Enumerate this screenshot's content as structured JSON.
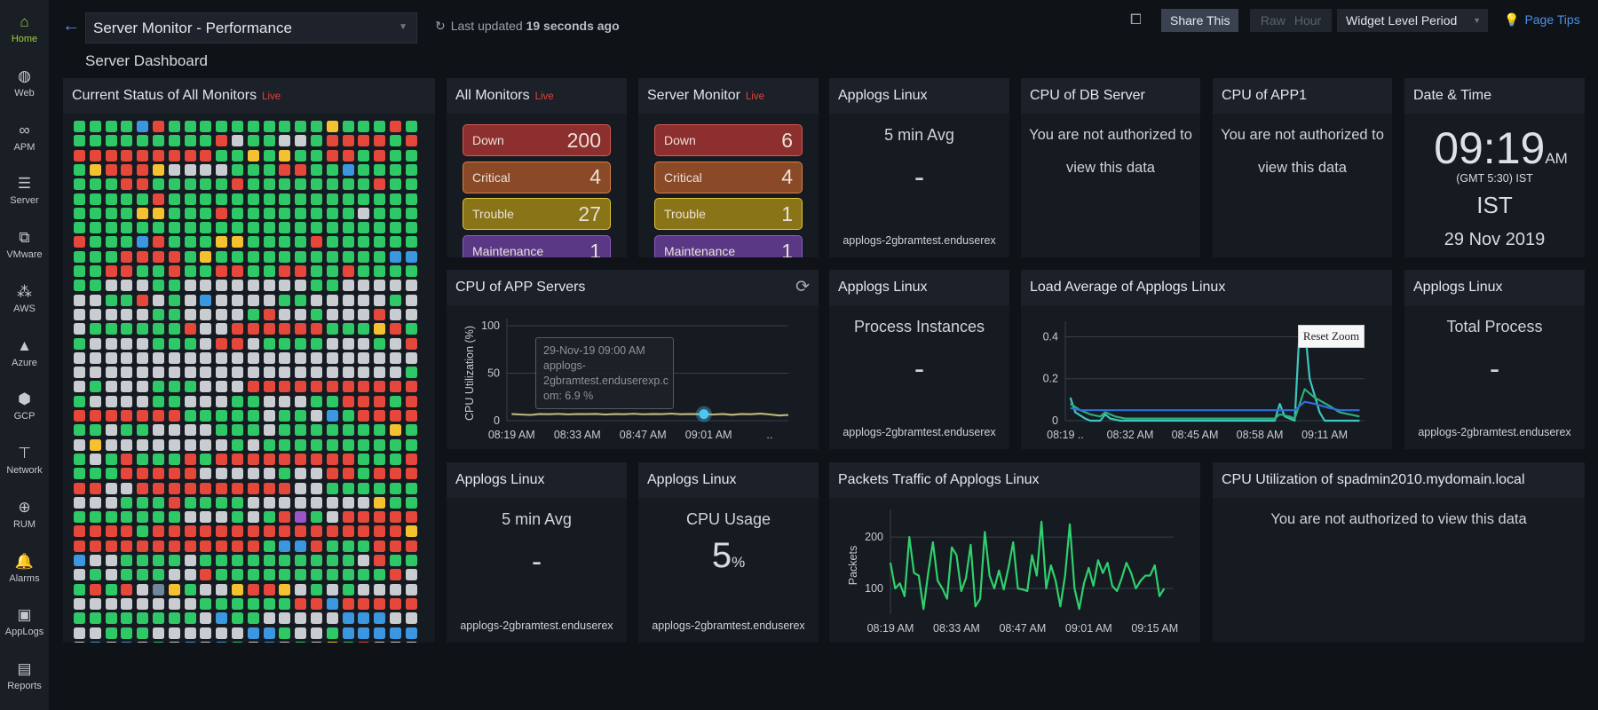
{
  "sidebar": {
    "items": [
      {
        "label": "Home",
        "icon": "home-icon",
        "glyph": "⌂",
        "active": true
      },
      {
        "label": "Web",
        "icon": "globe-icon",
        "glyph": "◍"
      },
      {
        "label": "APM",
        "icon": "binoculars-icon",
        "glyph": "∞"
      },
      {
        "label": "Server",
        "icon": "server-icon",
        "glyph": "☰"
      },
      {
        "label": "VMware",
        "icon": "vmware-icon",
        "glyph": "⧉"
      },
      {
        "label": "AWS",
        "icon": "aws-icon",
        "glyph": "⁂"
      },
      {
        "label": "Azure",
        "icon": "azure-icon",
        "glyph": "▲"
      },
      {
        "label": "GCP",
        "icon": "gcp-icon",
        "glyph": "⬢"
      },
      {
        "label": "Network",
        "icon": "network-icon",
        "glyph": "⊤"
      },
      {
        "label": "RUM",
        "icon": "rum-globe-icon",
        "glyph": "⊕"
      },
      {
        "label": "Alarms",
        "icon": "bell-icon",
        "glyph": "🔔"
      },
      {
        "label": "AppLogs",
        "icon": "applogs-icon",
        "glyph": "▣"
      },
      {
        "label": "Reports",
        "icon": "reports-icon",
        "glyph": "▤"
      }
    ]
  },
  "header": {
    "dashboard": "Server Monitor - Performance",
    "last_updated_prefix": "Last updated",
    "last_updated_value": "19 seconds ago",
    "subtitle": "Server Dashboard",
    "share": "Share This",
    "raw": "Raw",
    "hour": "Hour",
    "period": "Widget Level Period",
    "tips": "Page Tips"
  },
  "live": "Live",
  "status_grid": {
    "title": "Current Status of All Monitors",
    "colors": {
      "G": "#2ec866",
      "R": "#e5473b",
      "S": "#c9ccd1",
      "Y": "#f4c230",
      "B": "#3a97e0",
      "P": "#9b55c8",
      "D": "#6f8799"
    },
    "rows": [
      "GGGGBRGGGGGGGGGGYGGGRG",
      "GGGGGGGGGRSGGSSGRRRRGR",
      "RRRRRRRRRGGYGYGGRRGRGG",
      "GYRRRYSSSSGGGRRGGBGGGG",
      "GGGRRGGGGGRGGGGGGGGRGG",
      "GGGGGRGGGGGGGGGGGGGGGG",
      "GGGGYYGGGRGGGGGGGGSGGG",
      "GGGGGGGGGGGGGGGGGGGGGG",
      "RGGGBRGGGYYGGGGRGGGGGG",
      "GGGRRRRGYGGGGGGGGGGGBB",
      "GGRRGGRGGRRGGRRGGRGGGG",
      "GGSSSGGSSSSSSSSGGSSSSS",
      "SSGGRSGSBSSSSGGSSSSSGS",
      "SSSSSGGSSSSGRSSGSSSRSS",
      "SGGGGGGRSSRRRRRRGGGYRG",
      "GSSSSGGGSRRSGGGGSSSGSR",
      "SSSSSSSSSSSSSSSSSSSSSS",
      "SSSSSSSSSSSSSSSSSSSSSG",
      "SGSSSGGGSSSRRRRRRRRRRR",
      "GSSSSGGSSSGGSSSGGRRRGR",
      "RRRRRRRGGGGGSGGSBGRRRR",
      "GGSGGSSSSGGGSGGGGGGGYG",
      "SYSSSSSSSSGSGGGGGGGGGG",
      "GSGRGGGRGRRRRRRRRRGGGR",
      "GGGRRRRRSSSSSGSSRRGRRR",
      "RRSSRRRRRRRRRRSSGGGGGG",
      "SSSGGGRGGGGSSSSSSSSYGG",
      "GGGGGGGSSSGSGRPGSRRRRR",
      "RRRRGRRRRRRRRRRRRRRRRY",
      "RRRRRRRRRRRRGBBRGGGRRR",
      "BSSGGGGSGGGGGGGGGGSRGG",
      "SGSGGGSSRGGGGGGGGGGGRS",
      "GRGRSDYGSSYRRYSGSGSSSS",
      "SSSSSSSSGGGGGGRRBRRRRR",
      "GGGGGGGGSBGGSSSSSBBBSS",
      "SSGGGSSSSSSBBGSSGBBBBB",
      "SBSBSGSBSBGSBSGSYGRSSS"
    ]
  },
  "all_monitors": {
    "title": "All Monitors",
    "items": [
      {
        "label": "Down",
        "count": "200"
      },
      {
        "label": "Critical",
        "count": "4"
      },
      {
        "label": "Trouble",
        "count": "27"
      },
      {
        "label": "Maintenance",
        "count": "1"
      }
    ]
  },
  "server_monitor": {
    "title": "Server Monitor",
    "items": [
      {
        "label": "Down",
        "count": "6"
      },
      {
        "label": "Critical",
        "count": "4"
      },
      {
        "label": "Trouble",
        "count": "1"
      },
      {
        "label": "Maintenance",
        "count": "1"
      }
    ]
  },
  "applogs_avg_top": {
    "title": "Applogs Linux",
    "metric": "5 min Avg",
    "value": "-",
    "host": "applogs-2gbramtest.enduserex"
  },
  "cpu_db": {
    "title": "CPU of DB Server",
    "message_line1": "You are not authorized to",
    "message_line2": "view this data"
  },
  "cpu_app1": {
    "title": "CPU of APP1",
    "message_line1": "You are not authorized to",
    "message_line2": "view this data"
  },
  "datetime": {
    "title": "Date & Time",
    "time": "09:19",
    "ampm": "AM",
    "offset": "(GMT 5:30) IST",
    "zone": "IST",
    "date": "29 Nov 2019"
  },
  "process_instances": {
    "title": "Applogs Linux",
    "metric": "Process Instances",
    "value": "-",
    "host": "applogs-2gbramtest.enduserex"
  },
  "total_process": {
    "title": "Applogs Linux",
    "metric": "Total Process",
    "value": "-",
    "host": "applogs-2gbramtest.enduserex"
  },
  "applogs_avg_bottom": {
    "title": "Applogs Linux",
    "metric": "5 min Avg",
    "value": "-",
    "host": "applogs-2gbramtest.enduserex"
  },
  "cpu_usage": {
    "title": "Applogs Linux",
    "metric": "CPU Usage",
    "value": "5",
    "unit": "%",
    "host": "applogs-2gbramtest.enduserex"
  },
  "spadmin": {
    "title": "CPU Utilization of spadmin2010.mydomain.local",
    "message": "You are not authorized to view this data"
  },
  "chart_data": [
    {
      "id": "cpu_app",
      "type": "line",
      "title": "CPU of APP Servers",
      "ylabel": "CPU Utilization (%)",
      "xlabel": "",
      "ylim": [
        0,
        100
      ],
      "yticks": [
        0,
        50,
        100
      ],
      "xlim": [
        "08:18",
        "09:18"
      ],
      "xticks": [
        {
          "t": "08:19",
          "label": "08:19 AM"
        },
        {
          "t": "08:33",
          "label": "08:33 AM"
        },
        {
          "t": "08:47",
          "label": "08:47 AM"
        },
        {
          "t": "09:01",
          "label": "09:01 AM"
        },
        {
          "t": "09:14",
          "label": ".."
        }
      ],
      "grid": true,
      "series": [
        {
          "color": "#b9b37a",
          "points": [
            [
              "08:19",
              7
            ],
            [
              "08:21",
              6.5
            ],
            [
              "08:23",
              6
            ],
            [
              "08:25",
              7
            ],
            [
              "08:27",
              6.8
            ],
            [
              "08:29",
              7.2
            ],
            [
              "08:31",
              6.6
            ],
            [
              "08:33",
              7
            ],
            [
              "08:35",
              6.9
            ],
            [
              "08:37",
              7.1
            ],
            [
              "08:39",
              6.5
            ],
            [
              "08:41",
              7
            ],
            [
              "08:43",
              6.8
            ],
            [
              "08:45",
              7.3
            ],
            [
              "08:47",
              6.7
            ],
            [
              "08:49",
              7
            ],
            [
              "08:51",
              6.9
            ],
            [
              "08:53",
              7.4
            ],
            [
              "08:55",
              6.8
            ],
            [
              "08:57",
              7
            ],
            [
              "08:59",
              6.9
            ],
            [
              "09:00",
              6.9
            ],
            [
              "09:02",
              6.5
            ],
            [
              "09:04",
              7
            ],
            [
              "09:06",
              6.2
            ],
            [
              "09:08",
              7
            ],
            [
              "09:10",
              6.8
            ],
            [
              "09:12",
              7.5
            ],
            [
              "09:14",
              6.6
            ],
            [
              "09:16",
              5.5
            ],
            [
              "09:18",
              6
            ]
          ]
        }
      ],
      "highlight": {
        "t": "09:00",
        "value": 6.9,
        "color": "#4cc6f0"
      },
      "tooltip": {
        "line1": "29-Nov-19 09:00 AM",
        "line2": "applogs-",
        "line3": "2gbramtest.enduserexp.c",
        "line4": "om: 6.9 %"
      }
    },
    {
      "id": "load_avg",
      "type": "line",
      "title": "Load Average of Applogs Linux",
      "ylim": [
        0,
        0.44
      ],
      "yticks": [
        0,
        0.2,
        0.4
      ],
      "xlim": [
        "08:19",
        "09:19"
      ],
      "xticks": [
        {
          "t": "08:19",
          "label": "08:19 .."
        },
        {
          "t": "08:32",
          "label": "08:32 AM"
        },
        {
          "t": "08:45",
          "label": "08:45 AM"
        },
        {
          "t": "08:58",
          "label": "08:58 AM"
        },
        {
          "t": "09:11",
          "label": "09:11 AM"
        }
      ],
      "grid": true,
      "reset_zoom": "Reset Zoom",
      "series": [
        {
          "color": "#3ec6c0",
          "points": [
            [
              "08:20",
              0.11
            ],
            [
              "08:21",
              0.04
            ],
            [
              "08:23",
              0.01
            ],
            [
              "08:24",
              0
            ],
            [
              "08:26",
              0
            ],
            [
              "08:27",
              0.03
            ],
            [
              "08:28",
              0.01
            ],
            [
              "08:30",
              0
            ],
            [
              "09:01",
              0
            ],
            [
              "09:02",
              0.08
            ],
            [
              "09:03",
              0.02
            ],
            [
              "09:05",
              0
            ],
            [
              "09:06",
              0.45
            ],
            [
              "09:07",
              0.45
            ],
            [
              "09:08",
              0.2
            ],
            [
              "09:10",
              0.04
            ],
            [
              "09:11",
              0
            ],
            [
              "09:18",
              0
            ]
          ]
        },
        {
          "color": "#2fae74",
          "points": [
            [
              "08:20",
              0.08
            ],
            [
              "08:22",
              0.05
            ],
            [
              "08:24",
              0.03
            ],
            [
              "08:26",
              0.02
            ],
            [
              "08:27",
              0.04
            ],
            [
              "08:29",
              0.02
            ],
            [
              "08:31",
              0.01
            ],
            [
              "09:01",
              0.01
            ],
            [
              "09:02",
              0.03
            ],
            [
              "09:04",
              0.02
            ],
            [
              "09:05",
              0.01
            ],
            [
              "09:07",
              0.15
            ],
            [
              "09:09",
              0.11
            ],
            [
              "09:12",
              0.07
            ],
            [
              "09:14",
              0.04
            ],
            [
              "09:16",
              0.03
            ],
            [
              "09:18",
              0.02
            ]
          ]
        },
        {
          "color": "#2f6de0",
          "points": [
            [
              "08:20",
              0.06
            ],
            [
              "08:22",
              0.05
            ],
            [
              "09:05",
              0.05
            ],
            [
              "09:07",
              0.09
            ],
            [
              "09:09",
              0.08
            ],
            [
              "09:12",
              0.06
            ],
            [
              "09:14",
              0.05
            ],
            [
              "09:18",
              0.05
            ]
          ]
        }
      ]
    },
    {
      "id": "packets",
      "type": "line",
      "title": "Packets Traffic of Applogs Linux",
      "ylabel": "Packets",
      "ylim": [
        50,
        240
      ],
      "yticks": [
        100,
        200
      ],
      "xlim": [
        "08:19",
        "09:19"
      ],
      "xticks": [
        {
          "t": "08:19",
          "label": "08:19 AM"
        },
        {
          "t": "08:33",
          "label": "08:33 AM"
        },
        {
          "t": "08:47",
          "label": "08:47 AM"
        },
        {
          "t": "09:01",
          "label": "09:01 AM"
        },
        {
          "t": "09:15",
          "label": "09:15 AM"
        }
      ],
      "grid": true,
      "start": "08:19",
      "step_minutes": 1,
      "series": [
        {
          "color": "#2fd06d",
          "values": [
            150,
            100,
            110,
            85,
            200,
            130,
            125,
            60,
            130,
            190,
            115,
            100,
            80,
            180,
            165,
            95,
            120,
            185,
            65,
            80,
            210,
            125,
            100,
            135,
            98,
            140,
            190,
            100,
            98,
            95,
            165,
            125,
            230,
            100,
            145,
            115,
            65,
            125,
            225,
            100,
            60,
            110,
            140,
            105,
            155,
            130,
            150,
            105,
            95,
            120,
            150,
            130,
            100,
            115,
            125,
            125,
            145,
            85,
            100
          ]
        }
      ]
    }
  ]
}
